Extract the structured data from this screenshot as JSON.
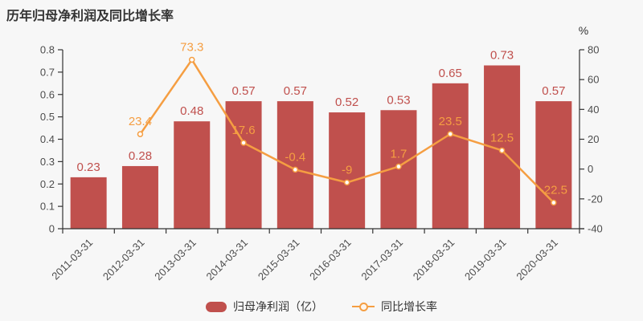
{
  "title": "历年归母净利润及同比增长率",
  "colors": {
    "background": "#f7f7f7",
    "bar": "#c0504d",
    "bar_label": "#c0504d",
    "line": "#f59e42",
    "line_label": "#f59e42",
    "axis": "#333333",
    "tick_label": "#4d4d4d",
    "title_text": "#333333",
    "legend_text": "#333333"
  },
  "chart_data": {
    "type": "bar+line",
    "title": "历年归母净利润及同比增长率",
    "categories": [
      "2011-03-31",
      "2012-03-31",
      "2013-03-31",
      "2014-03-31",
      "2015-03-31",
      "2016-03-31",
      "2017-03-31",
      "2018-03-31",
      "2019-03-31",
      "2020-03-31"
    ],
    "series": [
      {
        "name": "归母净利润（亿）",
        "type": "bar",
        "axis": "left",
        "values": [
          0.23,
          0.28,
          0.48,
          0.57,
          0.57,
          0.52,
          0.53,
          0.65,
          0.73,
          0.57
        ],
        "labels": [
          "0.23",
          "0.28",
          "0.48",
          "0.57",
          "0.57",
          "0.52",
          "0.53",
          "0.65",
          "0.73",
          "0.57"
        ]
      },
      {
        "name": "同比增长率",
        "type": "line",
        "axis": "right",
        "values": [
          null,
          23.4,
          73.3,
          17.6,
          -0.4,
          -9,
          1.7,
          23.5,
          12.5,
          -22.5
        ],
        "labels": [
          "",
          "23.4",
          "73.3",
          "17.6",
          "-0.4",
          "-9",
          "1.7",
          "23.5",
          "12.5",
          "-22.5"
        ]
      }
    ],
    "left_axis": {
      "min": 0,
      "max": 0.8,
      "tick_step": 0.1,
      "ticks": [
        "0.8",
        "0.7",
        "0.6",
        "0.5",
        "0.4",
        "0.3",
        "0.2",
        "0.1",
        "0"
      ]
    },
    "right_axis": {
      "unit": "%",
      "min": -40,
      "max": 80,
      "tick_step": 20,
      "ticks": [
        "80",
        "60",
        "40",
        "20",
        "0",
        "-20",
        "-40"
      ]
    },
    "legend": [
      "归母净利润（亿）",
      "同比增长率"
    ],
    "legend_position": "bottom",
    "x_labels_rotated": true,
    "grid": false
  }
}
